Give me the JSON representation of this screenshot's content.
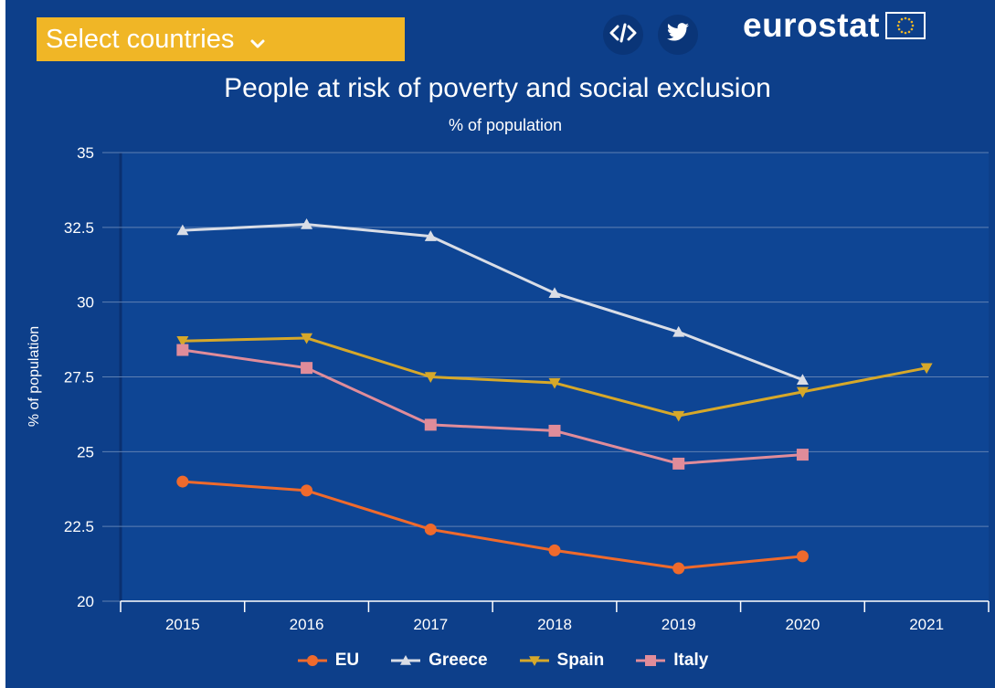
{
  "header": {
    "select_label": "Select countries",
    "embed_icon": "code-icon",
    "share_icon": "twitter-icon",
    "logo_text": "eurostat"
  },
  "colors": {
    "background": "#0d3f8a",
    "button": "#f0b626",
    "grid": "#5e80b3",
    "EU": "#ef6a2c",
    "Greece": "#d9dde6",
    "Spain": "#d6a82a",
    "Italy": "#e08c9a"
  },
  "chart_data": {
    "type": "line",
    "title": "People at risk of poverty and social exclusion",
    "subtitle": "% of population",
    "ylabel": "% of population",
    "xlabel": "",
    "ylim": [
      20,
      35
    ],
    "yticks": [
      20,
      22.5,
      25,
      27.5,
      30,
      32.5,
      35
    ],
    "ytick_labels": [
      "20",
      "22.5",
      "25",
      "27.5",
      "30",
      "32.5",
      "35"
    ],
    "categories": [
      "2015",
      "2016",
      "2017",
      "2018",
      "2019",
      "2020",
      "2021"
    ],
    "grid": true,
    "legend_position": "bottom",
    "series": [
      {
        "name": "EU",
        "marker": "circle",
        "values": [
          24.0,
          23.7,
          22.4,
          21.7,
          21.1,
          21.5,
          null
        ]
      },
      {
        "name": "Greece",
        "marker": "triangle-up",
        "values": [
          32.4,
          32.6,
          32.2,
          30.3,
          29.0,
          27.4,
          null
        ]
      },
      {
        "name": "Spain",
        "marker": "triangle-down",
        "values": [
          28.7,
          28.8,
          27.5,
          27.3,
          26.2,
          27.0,
          27.8
        ]
      },
      {
        "name": "Italy",
        "marker": "square",
        "values": [
          28.4,
          27.8,
          25.9,
          25.7,
          24.6,
          24.9,
          null
        ]
      }
    ]
  }
}
